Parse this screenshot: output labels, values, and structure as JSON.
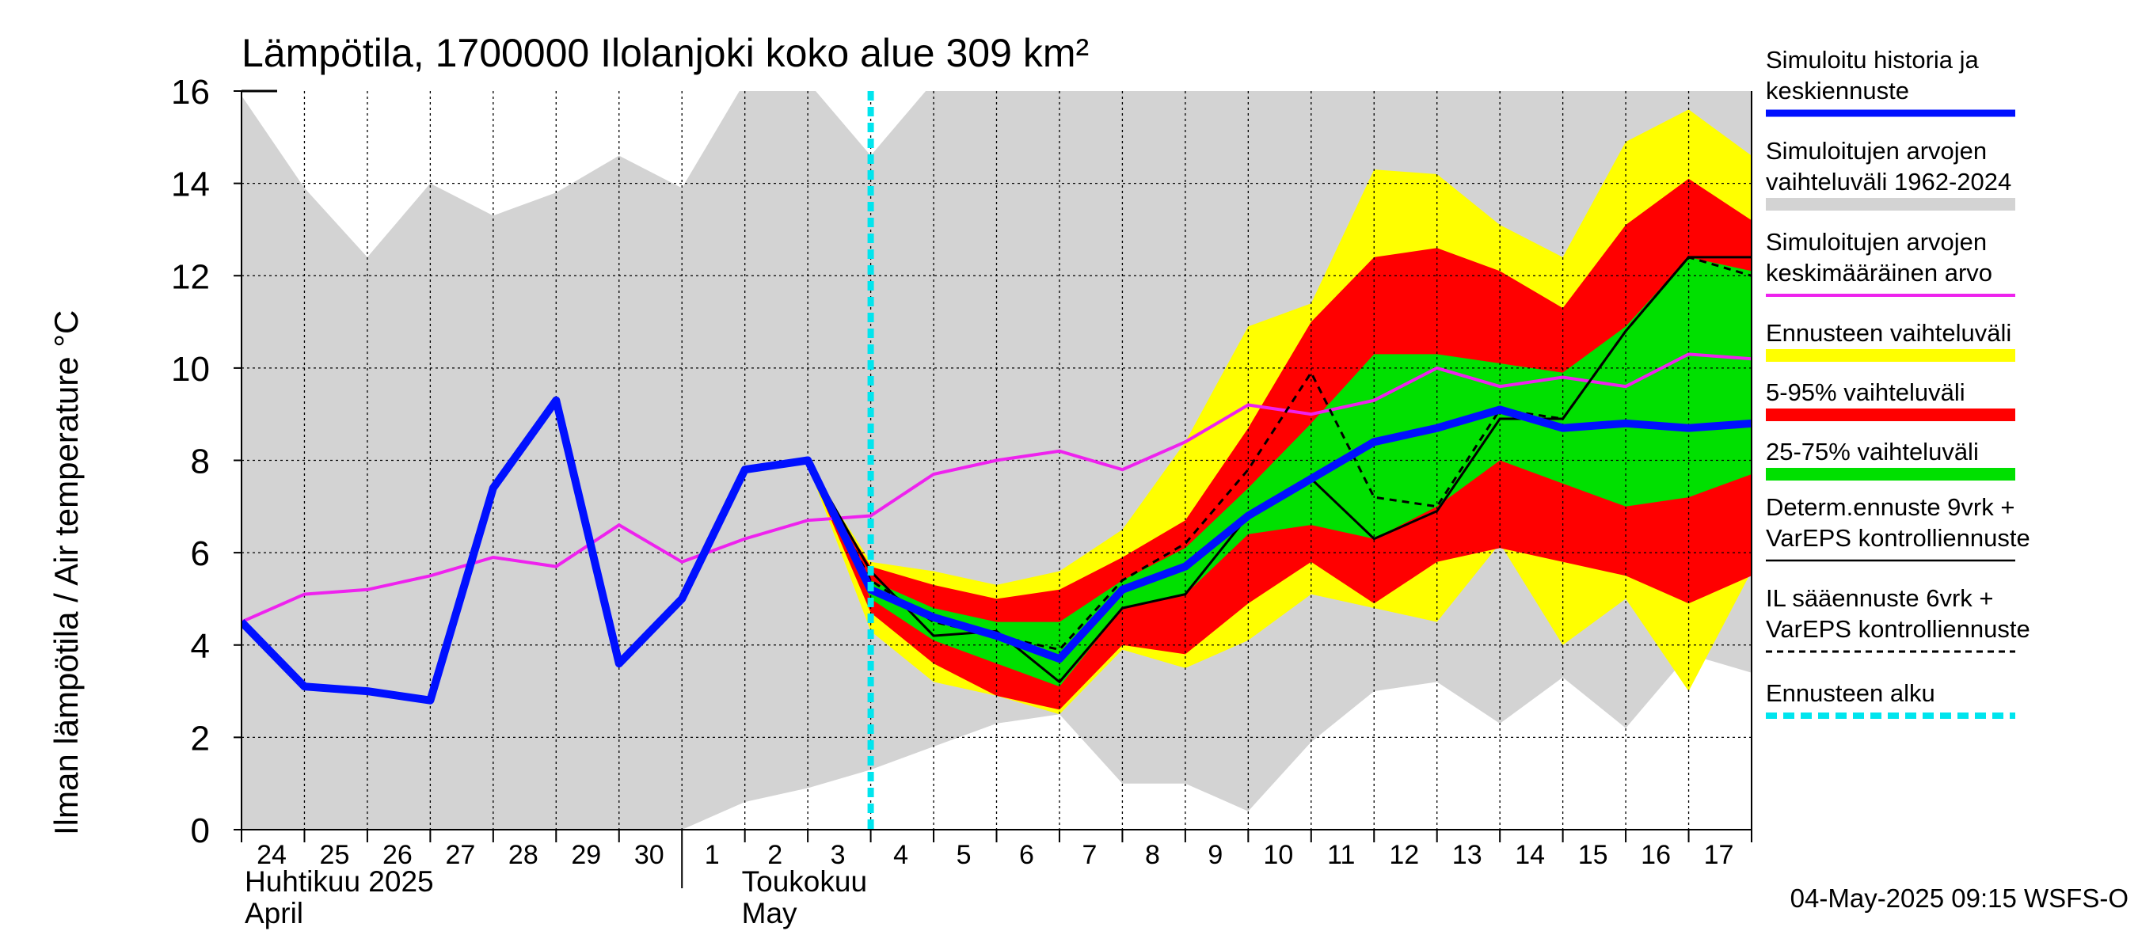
{
  "chart_data": {
    "type": "area",
    "title": "Lämpötila, 1700000 Ilolanjoki koko alue 309 km²",
    "ylabel": "Ilman lämpötila / Air temperature    °C",
    "ylim": [
      0,
      16
    ],
    "yticks": [
      0,
      2,
      4,
      6,
      8,
      10,
      12,
      14,
      16
    ],
    "xlim": [
      0,
      24
    ],
    "day_labels": [
      "24",
      "25",
      "26",
      "27",
      "28",
      "29",
      "30",
      "1",
      "2",
      "3",
      "4",
      "5",
      "6",
      "7",
      "8",
      "9",
      "10",
      "11",
      "12",
      "13",
      "14",
      "15",
      "16",
      "17"
    ],
    "month_labels": {
      "april_fi": "Huhtikuu  2025",
      "april_en": "April",
      "may_fi": "Toukokuu",
      "may_en": "May"
    },
    "forecast_start_x": 10,
    "timestamp": "04-May-2025 09:15 WSFS-O",
    "series": {
      "hist_range": {
        "x": [
          0,
          1,
          2,
          3,
          4,
          5,
          6,
          7,
          8,
          9,
          10,
          11,
          12,
          13,
          14,
          15,
          16,
          17,
          18,
          19,
          20,
          21,
          22,
          23,
          24
        ],
        "upper": [
          15.9,
          13.9,
          12.4,
          14.0,
          13.3,
          13.8,
          14.6,
          13.9,
          16.2,
          16.2,
          14.6,
          16.2,
          16.2,
          16.2,
          16.2,
          16.2,
          16.2,
          16.2,
          16.2,
          16.2,
          16.2,
          16.2,
          16.2,
          16.2,
          16.2
        ],
        "lower": [
          0,
          0,
          0,
          0,
          0,
          0,
          0,
          0,
          0.6,
          0.9,
          1.3,
          1.8,
          2.3,
          2.5,
          1.0,
          1.0,
          0.4,
          1.9,
          3.0,
          3.2,
          2.3,
          3.3,
          2.2,
          3.8,
          3.4
        ]
      },
      "ens_range": {
        "x": [
          9,
          10,
          11,
          12,
          13,
          14,
          15,
          16,
          17,
          18,
          19,
          20,
          21,
          22,
          23,
          24
        ],
        "upper": [
          7.9,
          5.8,
          5.6,
          5.3,
          5.6,
          6.5,
          8.4,
          10.9,
          11.4,
          14.3,
          14.2,
          13.1,
          12.4,
          14.9,
          15.6,
          14.6
        ],
        "lower": [
          7.9,
          4.3,
          3.2,
          2.9,
          2.5,
          3.9,
          3.5,
          4.1,
          5.1,
          4.8,
          4.5,
          6.2,
          4.0,
          5.0,
          3.0,
          5.6
        ]
      },
      "p5_95": {
        "x": [
          9,
          10,
          11,
          12,
          13,
          14,
          15,
          16,
          17,
          18,
          19,
          20,
          21,
          22,
          23,
          24
        ],
        "upper": [
          7.9,
          5.7,
          5.3,
          5.0,
          5.2,
          5.9,
          6.7,
          8.7,
          11.0,
          12.4,
          12.6,
          12.1,
          11.3,
          13.1,
          14.1,
          13.2
        ],
        "lower": [
          7.9,
          4.7,
          3.6,
          2.9,
          2.6,
          4.0,
          3.8,
          4.9,
          5.8,
          4.9,
          5.8,
          6.1,
          5.8,
          5.5,
          4.9,
          5.5
        ]
      },
      "p25_75": {
        "x": [
          9,
          10,
          11,
          12,
          13,
          14,
          15,
          16,
          17,
          18,
          19,
          20,
          21,
          22,
          23,
          24
        ],
        "upper": [
          7.9,
          5.4,
          4.8,
          4.5,
          4.5,
          5.4,
          6.1,
          7.4,
          8.8,
          10.3,
          10.3,
          10.1,
          9.9,
          10.9,
          12.4,
          12.1
        ],
        "lower": [
          7.9,
          5.0,
          4.1,
          3.6,
          3.1,
          4.8,
          5.1,
          6.4,
          6.6,
          6.3,
          7.0,
          8.0,
          7.5,
          7.0,
          7.2,
          7.7
        ]
      },
      "mean_hist": {
        "x": [
          0,
          1,
          2,
          3,
          4,
          5,
          6,
          7,
          8,
          9,
          10,
          11,
          12,
          13,
          14,
          15,
          16,
          17,
          18,
          19,
          20,
          21,
          22,
          23,
          24
        ],
        "y": [
          4.5,
          5.1,
          5.2,
          5.5,
          5.9,
          5.7,
          6.6,
          5.8,
          6.3,
          6.7,
          6.8,
          7.7,
          8.0,
          8.2,
          7.8,
          8.4,
          9.2,
          9.0,
          9.3,
          10.0,
          9.6,
          9.8,
          9.6,
          10.3,
          10.2
        ]
      },
      "sim_median": {
        "x": [
          0,
          1,
          2,
          3,
          4,
          5,
          6,
          7,
          8,
          9,
          10,
          11,
          12,
          13,
          14,
          15,
          16,
          17,
          18,
          19,
          20,
          21,
          22,
          23,
          24
        ],
        "y": [
          4.5,
          3.1,
          3.0,
          2.8,
          7.4,
          9.3,
          3.6,
          5.0,
          7.8,
          8.0,
          5.2,
          4.6,
          4.2,
          3.7,
          5.2,
          5.7,
          6.8,
          7.6,
          8.4,
          8.7,
          9.1,
          8.7,
          8.8,
          8.7,
          8.8
        ]
      },
      "determ": {
        "x": [
          9,
          10,
          11,
          12,
          13,
          14,
          15,
          16,
          17,
          18,
          19,
          20,
          21,
          22,
          23,
          24
        ],
        "y": [
          8.0,
          5.6,
          4.2,
          4.3,
          3.2,
          4.8,
          5.1,
          6.8,
          7.6,
          6.3,
          6.9,
          8.9,
          8.9,
          10.8,
          12.4,
          12.4
        ]
      },
      "il_forecast": {
        "x": [
          9,
          10,
          11,
          12,
          13,
          14,
          15,
          16,
          17,
          18,
          19,
          20,
          21,
          22,
          23,
          24
        ],
        "y": [
          8.0,
          5.4,
          4.5,
          4.2,
          3.9,
          5.4,
          6.2,
          7.8,
          9.9,
          7.2,
          7.0,
          9.1,
          8.9,
          10.8,
          12.4,
          12.0
        ]
      }
    },
    "legend": [
      {
        "label": "Simuloitu historia ja keskiennuste",
        "lines": [
          "Simuloitu historia ja",
          "keskiennuste"
        ],
        "color": "#0010ff",
        "style": "thick"
      },
      {
        "label": "Simuloitujen arvojen vaihteluväli 1962-2024",
        "lines": [
          "Simuloitujen arvojen",
          "vaihteluväli 1962-2024"
        ],
        "color": "#d3d3d3",
        "style": "band"
      },
      {
        "label": "Simuloitujen arvojen keskimääräinen arvo",
        "lines": [
          "Simuloitujen arvojen",
          "keskimääräinen arvo"
        ],
        "color": "#ee22ee",
        "style": "line"
      },
      {
        "label": "Ennusteen vaihteluväli",
        "lines": [
          "Ennusteen vaihteluväli"
        ],
        "color": "#ffff00",
        "style": "band"
      },
      {
        "label": "5-95% vaihteluväli",
        "lines": [
          "5-95% vaihteluväli"
        ],
        "color": "#ff0000",
        "style": "band"
      },
      {
        "label": "25-75% vaihteluväli",
        "lines": [
          "25-75% vaihteluväli"
        ],
        "color": "#00e000",
        "style": "band"
      },
      {
        "label": "Determ.ennuste 9vrk + VarEPS kontrolliennuste",
        "lines": [
          "Determ.ennuste 9vrk +",
          "VarEPS kontrolliennuste"
        ],
        "color": "#000000",
        "style": "thin"
      },
      {
        "label": "IL sääennuste 6vrk + VarEPS kontrolliennuste",
        "lines": [
          "IL sääennuste 6vrk  +",
          "  VarEPS kontrolliennuste"
        ],
        "color": "#000000",
        "style": "dashed"
      },
      {
        "label": "Ennusteen alku",
        "lines": [
          "Ennusteen alku"
        ],
        "color": "#00e5ee",
        "style": "cyan-dashed"
      }
    ],
    "colors": {
      "hist_range": "#d3d3d3",
      "ens_range": "#ffff00",
      "p5_95": "#ff0000",
      "p25_75": "#00e000",
      "mean_hist": "#ee22ee",
      "sim_median": "#0010ff",
      "forecast_start": "#00e5ee"
    }
  }
}
